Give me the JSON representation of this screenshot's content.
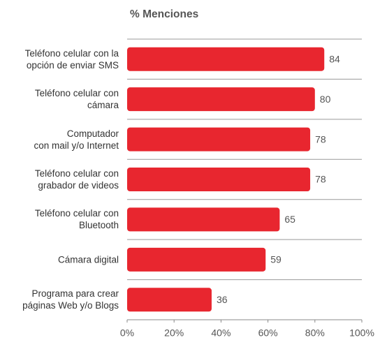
{
  "chart_data": {
    "type": "bar",
    "orientation": "horizontal",
    "title": "% Menciones",
    "categories": [
      "Teléfono celular con la\nopción de enviar SMS",
      "Teléfono celular con\ncámara",
      "Computador\ncon mail y/o Internet",
      "Teléfono celular con\ngrabador de videos",
      "Teléfono celular con\nBluetooth",
      "Cámara digital",
      "Programa para crear\npáginas Web y/o Blogs"
    ],
    "values": [
      84,
      80,
      78,
      78,
      65,
      59,
      36
    ],
    "color": "#e8262f",
    "xlim": [
      0,
      100
    ],
    "xticks": [
      {
        "value": 0,
        "label": "0%"
      },
      {
        "value": 20,
        "label": "20%"
      },
      {
        "value": 40,
        "label": "40%"
      },
      {
        "value": 60,
        "label": "60%"
      },
      {
        "value": 80,
        "label": "80%"
      },
      {
        "value": 100,
        "label": "100%"
      }
    ]
  }
}
